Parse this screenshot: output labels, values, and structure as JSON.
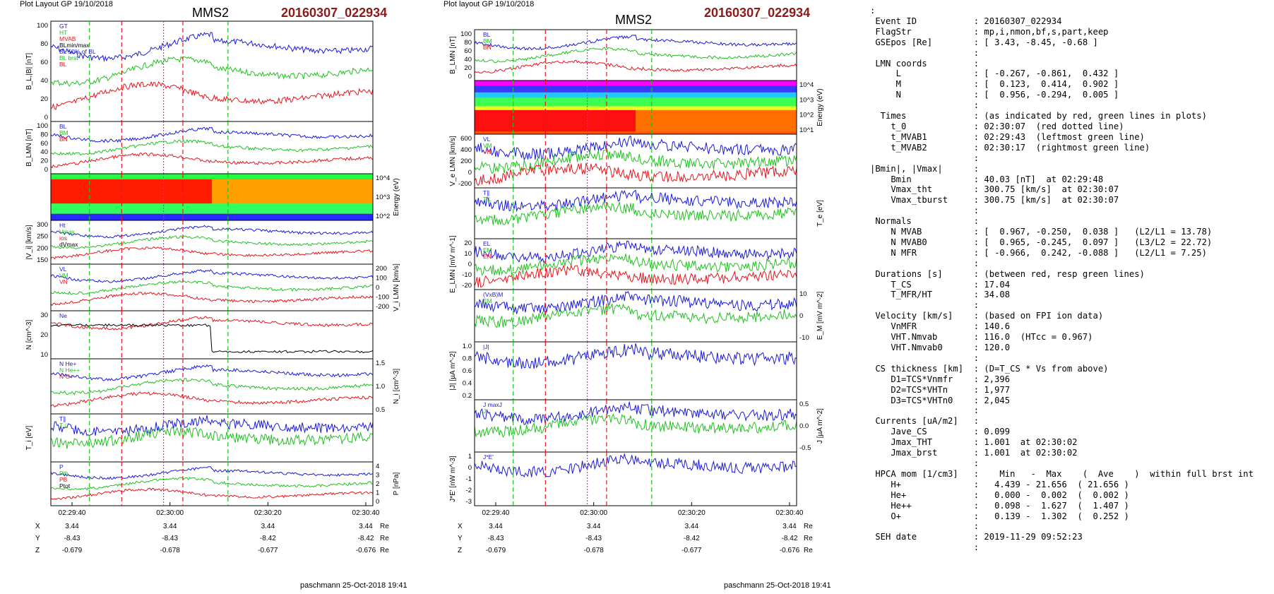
{
  "left_plot": {
    "header": "Plot Layout GP 19/10/2018",
    "spacecraft": "MMS2",
    "event": "20160307_022934",
    "footer": "paschmann 25-Oct-2018 19:41",
    "time_ticks": [
      "02:29:40",
      "02:30:00",
      "02:30:20",
      "02:30:40"
    ],
    "ephem": {
      "X": [
        "3.44",
        "3.44",
        "3.44",
        "3.44"
      ],
      "Y": [
        "-8.43",
        "-8.43",
        "-8.42",
        "-8.42"
      ],
      "Z": [
        "-0.679",
        "-0.678",
        "-0.677",
        "-0.676"
      ],
      "unit": "Re"
    },
    "panels": [
      {
        "ylabel": "B_L,|B| [nT]",
        "ticks": [
          "100",
          "80",
          "60",
          "40",
          "20",
          "0"
        ],
        "legend": [
          "GT",
          "HT",
          "MVAB",
          "BLmin/max",
          "BL 50% of BL",
          "BL brst",
          "BL"
        ]
      },
      {
        "ylabel": "B_LMN [nT]",
        "ticks": [
          "100",
          "80",
          "60",
          "40",
          "20",
          "0"
        ],
        "legend": [
          "BL",
          "BM",
          "BN"
        ]
      },
      {
        "ylabel": "Energy (eV)",
        "ticks": [
          "10^4",
          "10^3",
          "10^2"
        ],
        "legend": []
      },
      {
        "ylabel": "|V_i| [km/s]",
        "ticks": [
          "300",
          "250",
          "200",
          "150"
        ],
        "legend": [
          "Ht",
          "Vmax",
          "ios",
          "dVmax"
        ]
      },
      {
        "ylabel": "V_i LMN [km/s]",
        "ticks": [
          "200",
          "100",
          "0",
          "-100",
          "-200"
        ],
        "legend": [
          "VL",
          "VM",
          "VN"
        ]
      },
      {
        "ylabel": "N [cm^-3]",
        "ticks": [
          "30",
          "20",
          "10"
        ],
        "legend": [
          "Ne"
        ]
      },
      {
        "ylabel": "N_i [cm^-3]",
        "ticks": [
          "1.5",
          "1.0",
          "0.5"
        ],
        "legend": [
          "N He+",
          "N He++",
          "N O+"
        ]
      },
      {
        "ylabel": "T_i [eV]",
        "ticks": [],
        "legend": [
          "T∥",
          "T⊥"
        ]
      },
      {
        "ylabel": "P [nPa]",
        "ticks": [
          "4",
          "3",
          "2",
          "1",
          "0"
        ],
        "legend": [
          "P",
          "Pth",
          "PB",
          "Ptot"
        ]
      }
    ]
  },
  "right_plot": {
    "header": "Plot layout GP 19/10/2018",
    "spacecraft": "MMS2",
    "event": "20160307_022934",
    "footer": "paschmann 25-Oct-2018 19:41",
    "time_ticks": [
      "02:29:40",
      "02:30:00",
      "02:30:20",
      "02:30:40"
    ],
    "ephem": {
      "X": [
        "3.44",
        "3.44",
        "3.44",
        "3.44"
      ],
      "Y": [
        "-8.43",
        "-8.43",
        "-8.42",
        "-8.42"
      ],
      "Z": [
        "-0.679",
        "-0.678",
        "-0.677",
        "-0.676"
      ],
      "unit": "Re"
    },
    "panels": [
      {
        "ylabel": "B_LMN [nT]",
        "ticks": [
          "100",
          "80",
          "60",
          "40",
          "20",
          "0"
        ],
        "legend": [
          "BL",
          "BM",
          "BN"
        ]
      },
      {
        "ylabel": "Energy (eV)",
        "ticks": [
          "10^4",
          "10^3",
          "10^2",
          "10^1"
        ],
        "legend": []
      },
      {
        "ylabel": "V_e LMN [km/s]",
        "ticks": [
          "600",
          "400",
          "200",
          "0",
          "-200"
        ],
        "legend": [
          "VL",
          "VM",
          "VN"
        ]
      },
      {
        "ylabel": "T_e [eV]",
        "ticks": [],
        "legend": [
          "T∥",
          "T⊥"
        ]
      },
      {
        "ylabel": "E_LMN [mV m^-1]",
        "ticks": [
          "20",
          "10",
          "0",
          "-10",
          "-20"
        ],
        "legend": [
          "EL",
          "EM",
          "EN"
        ]
      },
      {
        "ylabel": "E_M [mV m^-2]",
        "ticks": [
          "10",
          "0",
          "-10"
        ],
        "legend": [
          "(VxB)M",
          "EM"
        ]
      },
      {
        "ylabel": "|J| [µA m^-2]",
        "ticks": [
          "1.0",
          "0.8",
          "0.6",
          "0.4",
          "0.2"
        ],
        "legend": [
          "|J|"
        ]
      },
      {
        "ylabel": "J [µA m^-2]",
        "ticks": [
          "0.5",
          "0.0",
          "-0.5"
        ],
        "legend": [
          "J maxJ",
          "J"
        ]
      },
      {
        "ylabel": "J*E' [nW m^-3]",
        "ticks": [
          "1",
          "0",
          "-1",
          "-2",
          "-3"
        ],
        "legend": [
          "J*E'"
        ]
      }
    ]
  },
  "text_panel": {
    "lines": [
      ":",
      " Event ID           : 20160307_022934",
      " FlagStr            : mp,i,nmon,bf,s,part,keep",
      " GSEpos [Re]        : [ 3.43, -8.45, -0.68 ]",
      "                    :",
      " LMN coords         :",
      "     L              : [ -0.267, -0.861,  0.432 ]",
      "     M              : [  0.123,  0.414,  0.902 ]",
      "     N              : [  0.956, -0.294,  0.005 ]",
      "                    :",
      "  Times             : (as indicated by red, green lines in plots)",
      "    t_0             : 02:30:07  (red dotted line)",
      "    t_MVAB1         : 02:29:43  (leftmost green line)",
      "    t_MVAB2         : 02:30:17  (rightmost green line)",
      "                    :",
      "|Bmin|, |Vmax|      :",
      "    Bmin            : 40.03 [nT]  at 02:29:48",
      "    Vmax_tht        : 300.75 [km/s]  at 02:30:07",
      "    Vmax_tburst     : 300.75 [km/s]  at 02:30:07",
      "                    :",
      " Normals            :",
      "    N MVAB          : [  0.967, -0.250,  0.038 ]   (L2/L1 = 13.78)",
      "    N MVAB0         : [  0.965, -0.245,  0.097 ]   (L3/L2 = 22.72)",
      "    N MFR           : [ -0.966,  0.242, -0.088 ]   (L2/L1 = 7.25)",
      "                    :",
      " Durations [s]      : (between red, resp green lines)",
      "    T_CS            : 17.04",
      "    T_MFR/HT        : 34.08",
      "                    :",
      " Velocity [km/s]    : (based on FPI ion data)",
      "    VnMFR           : 140.6",
      "    VHT.Nmvab       : 116.0  (HTcc = 0.967)",
      "    VHT.Nmvab0      : 120.0",
      "                    :",
      " CS thickness [km]  : (D=T_CS * Vs from above)",
      "    D1=TCS*Vnmfr    : 2,396",
      "    D2=TCS*VHTn     : 1,977",
      "    D3=TCS*VHTn0    : 2,045",
      "                    :",
      " Currents [uA/m2]   :",
      "    Jave_CS         : 0.099",
      "    Jmax_THT        : 1.001  at 02:30:02",
      "    Jmax_brst       : 1.001  at 02:30:02",
      "                    :",
      " HPCA mom [1/cm3]   :    Min   -  Max    (  Ave    )  within full brst int",
      "    H+              :   4.439 - 21.656  ( 21.656 )",
      "    He+             :   0.000 -  0.002  (  0.002 )",
      "    He++            :   0.098 -  1.627  (  1.407 )",
      "    O+              :   0.139 -  1.302  (  0.252 )",
      "                    :",
      " SEH date           : 2019-11-29 09:52:23",
      "                    :"
    ]
  },
  "colors": {
    "event_title": "#8b1a1a",
    "red": "#e8141c",
    "green": "#1fc21f",
    "blue": "#1a1adc",
    "magenta": "#e020e0",
    "black": "#000000"
  }
}
